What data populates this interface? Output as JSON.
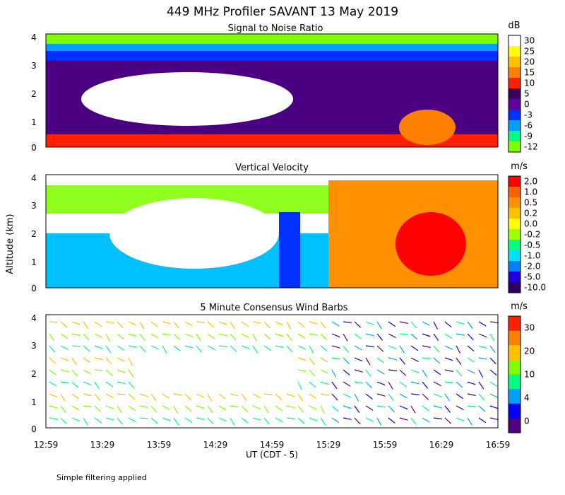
{
  "title": "449 MHz Profiler SAVANT 13 May 2019",
  "footer_note": "Simple filtering applied",
  "chart_data": [
    {
      "type": "heatmap",
      "title": "Signal to Noise Ratio",
      "ylabel": "Altitude (km)",
      "ylim": [
        0,
        4
      ],
      "yticks": [
        "0",
        "1",
        "2",
        "3",
        "4"
      ],
      "colorbar": {
        "unit": "dB",
        "labels": [
          "30",
          "25",
          "20",
          "15",
          "10",
          "5",
          "0",
          "-3",
          "-6",
          "-9",
          "-12"
        ],
        "colors": [
          "#ffffff",
          "#ffff00",
          "#ffc000",
          "#ff8000",
          "#ff2000",
          "#3a0060",
          "#6000a0",
          "#0030ff",
          "#00a0ff",
          "#00ff80",
          "#80ff00"
        ]
      }
    },
    {
      "type": "heatmap",
      "title": "Vertical Velocity",
      "ylabel": "Altitude (km)",
      "ylim": [
        0,
        4
      ],
      "yticks": [
        "0",
        "1",
        "2",
        "3",
        "4"
      ],
      "colorbar": {
        "unit": "m/s",
        "labels": [
          "2.0",
          "1.0",
          "0.5",
          "0.2",
          "0.0",
          "-0.2",
          "-0.5",
          "-1.0",
          "-2.0",
          "-5.0",
          "-10.0"
        ],
        "colors": [
          "#ff0000",
          "#ff6000",
          "#ff9000",
          "#ffc000",
          "#ffff00",
          "#a0ff00",
          "#00ff80",
          "#00e0ff",
          "#0080ff",
          "#2000e0",
          "#300060"
        ]
      }
    },
    {
      "type": "scatter",
      "title": "5 Minute Consensus Wind Barbs",
      "ylabel": "Altitude (km)",
      "ylim": [
        0,
        4
      ],
      "yticks": [
        "0",
        "1",
        "2",
        "3",
        "4"
      ],
      "xlabel": "UT  (CDT - 5)",
      "xticks": [
        "12:59",
        "13:29",
        "13:59",
        "14:29",
        "14:59",
        "15:29",
        "15:59",
        "16:29",
        "16:59"
      ],
      "colorbar": {
        "unit": "m/s",
        "labels": [
          "30",
          "20",
          "10",
          "4",
          "0"
        ],
        "colors": [
          "#ff2000",
          "#ff8000",
          "#ffc000",
          "#80ff00",
          "#00ff80",
          "#00a0ff",
          "#0000ff",
          "#500080"
        ]
      }
    }
  ]
}
